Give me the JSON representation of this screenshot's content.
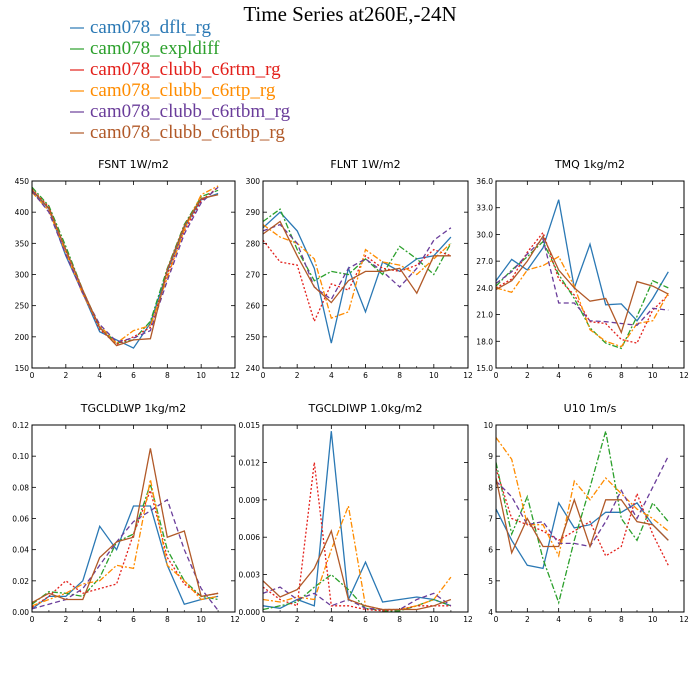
{
  "figure": {
    "title": "Time Series at260E,-24N"
  },
  "legend": [
    {
      "name": "cam078_dflt_rg",
      "color": "#2a78b4",
      "dash": "solid"
    },
    {
      "name": "cam078_expldiff",
      "color": "#2ca02c",
      "dash": "dashdot"
    },
    {
      "name": "cam078_clubb_c6rtm_rg",
      "color": "#e3201b",
      "dash": "dot"
    },
    {
      "name": "cam078_clubb_c6rtp_rg",
      "color": "#ff8c00",
      "dash": "dashdot"
    },
    {
      "name": "cam078_clubb_c6rtbm_rg",
      "color": "#6a3d9a",
      "dash": "dash"
    },
    {
      "name": "cam078_clubb_c6rtbp_rg",
      "color": "#b15928",
      "dash": "solid"
    }
  ],
  "chart_data": [
    {
      "type": "line",
      "title": "FSNT  1W/m2",
      "x": [
        0,
        1,
        2,
        3,
        4,
        5,
        6,
        7,
        8,
        9,
        10,
        11
      ],
      "xlim": [
        0,
        12
      ],
      "xticks": [
        "0",
        "2",
        "4",
        "6",
        "8",
        "10",
        "12"
      ],
      "ylim": [
        150,
        450
      ],
      "yticks": [
        "150",
        "200",
        "250",
        "300",
        "350",
        "400",
        "450"
      ],
      "series": [
        {
          "name": "cam078_dflt_rg",
          "values": [
            435,
            405,
            330,
            270,
            208,
            195,
            182,
            222,
            305,
            375,
            420,
            430
          ]
        },
        {
          "name": "cam078_expldiff",
          "values": [
            440,
            410,
            345,
            275,
            215,
            190,
            195,
            225,
            310,
            380,
            425,
            435
          ]
        },
        {
          "name": "cam078_clubb_c6rtm_rg",
          "values": [
            437,
            408,
            338,
            272,
            212,
            188,
            200,
            215,
            300,
            370,
            418,
            440
          ]
        },
        {
          "name": "cam078_clubb_c6rtp_rg",
          "values": [
            432,
            402,
            335,
            268,
            218,
            190,
            210,
            218,
            295,
            372,
            428,
            442
          ]
        },
        {
          "name": "cam078_clubb_c6rtbm_rg",
          "values": [
            434,
            400,
            332,
            270,
            220,
            192,
            198,
            210,
            290,
            365,
            415,
            440
          ]
        },
        {
          "name": "cam078_clubb_c6rtbp_rg",
          "values": [
            436,
            406,
            340,
            275,
            215,
            186,
            195,
            197,
            308,
            378,
            422,
            428
          ]
        }
      ]
    },
    {
      "type": "line",
      "title": "FLNT  1W/m2",
      "x": [
        0,
        1,
        2,
        3,
        4,
        5,
        6,
        7,
        8,
        9,
        10,
        11
      ],
      "xlim": [
        0,
        12
      ],
      "xticks": [
        "0",
        "2",
        "4",
        "6",
        "8",
        "10",
        "12"
      ],
      "ylim": [
        240,
        300
      ],
      "yticks": [
        "240",
        "250",
        "260",
        "270",
        "280",
        "290",
        "300"
      ],
      "series": [
        {
          "name": "cam078_dflt_rg",
          "values": [
            285,
            290,
            284,
            272,
            248,
            272,
            258,
            274,
            271,
            275,
            276,
            282
          ]
        },
        {
          "name": "cam078_expldiff",
          "values": [
            287,
            291,
            278,
            268,
            271,
            270,
            275,
            270,
            279,
            275,
            270,
            280
          ]
        },
        {
          "name": "cam078_clubb_c6rtm_rg",
          "values": [
            281,
            274,
            273,
            255,
            267,
            265,
            276,
            272,
            271,
            273,
            278,
            276
          ]
        },
        {
          "name": "cam078_clubb_c6rtp_rg",
          "values": [
            286,
            282,
            280,
            275,
            256,
            258,
            278,
            274,
            273,
            270,
            275,
            280
          ]
        },
        {
          "name": "cam078_clubb_c6rtbm_rg",
          "values": [
            284,
            286,
            280,
            266,
            262,
            272,
            275,
            271,
            266,
            272,
            281,
            285
          ]
        },
        {
          "name": "cam078_clubb_c6rtbp_rg",
          "values": [
            283,
            287,
            276,
            266,
            261,
            268,
            271,
            271,
            272,
            264,
            276,
            276
          ]
        }
      ]
    },
    {
      "type": "line",
      "title": "TMQ  1kg/m2",
      "x": [
        0,
        1,
        2,
        3,
        4,
        5,
        6,
        7,
        8,
        9,
        10,
        11
      ],
      "xlim": [
        0,
        12
      ],
      "xticks": [
        "0",
        "2",
        "4",
        "6",
        "8",
        "10",
        "12"
      ],
      "ylim": [
        15,
        36
      ],
      "yticks": [
        "15.0",
        "18.0",
        "21.0",
        "24.0",
        "27.0",
        "30.0",
        "33.0",
        "36.0"
      ],
      "series": [
        {
          "name": "cam078_dflt_rg",
          "values": [
            24.8,
            27.2,
            26.0,
            28.5,
            33.9,
            24.0,
            28.9,
            22.1,
            22.2,
            20.3,
            22.8,
            25.8
          ]
        },
        {
          "name": "cam078_expldiff",
          "values": [
            24.2,
            26.0,
            27.5,
            29.2,
            25.5,
            22.8,
            19.5,
            17.8,
            17.2,
            20.8,
            24.8,
            24.0
          ]
        },
        {
          "name": "cam078_clubb_c6rtm_rg",
          "values": [
            24.0,
            25.0,
            28.0,
            30.2,
            25.0,
            23.2,
            20.2,
            20.0,
            18.2,
            17.8,
            21.5,
            23.2
          ]
        },
        {
          "name": "cam078_clubb_c6rtp_rg",
          "values": [
            24.0,
            23.5,
            26.0,
            26.5,
            27.5,
            24.2,
            19.3,
            18.0,
            17.4,
            20.0,
            20.3,
            23.4
          ]
        },
        {
          "name": "cam078_clubb_c6rtbm_rg",
          "values": [
            24.5,
            25.8,
            27.8,
            29.5,
            22.3,
            22.3,
            20.3,
            20.2,
            20.0,
            19.8,
            21.7,
            21.5
          ]
        },
        {
          "name": "cam078_clubb_c6rtbp_rg",
          "values": [
            23.8,
            24.8,
            27.0,
            29.8,
            26.0,
            24.0,
            22.5,
            22.8,
            19.0,
            24.7,
            24.2,
            23.3
          ]
        }
      ]
    },
    {
      "type": "line",
      "title": "TGCLDLWP  1kg/m2",
      "x": [
        0,
        1,
        2,
        3,
        4,
        5,
        6,
        7,
        8,
        9,
        10,
        11
      ],
      "xlim": [
        0,
        12
      ],
      "xticks": [
        "0",
        "2",
        "4",
        "6",
        "8",
        "10",
        "12"
      ],
      "ylim": [
        0,
        0.12
      ],
      "yticks": [
        "0.00",
        "0.02",
        "0.04",
        "0.06",
        "0.08",
        "0.10",
        "0.12"
      ],
      "series": [
        {
          "name": "cam078_dflt_rg",
          "values": [
            0.002,
            0.01,
            0.01,
            0.02,
            0.055,
            0.04,
            0.068,
            0.068,
            0.03,
            0.005,
            0.008,
            0.01
          ]
        },
        {
          "name": "cam078_expldiff",
          "values": [
            0.005,
            0.013,
            0.012,
            0.01,
            0.022,
            0.045,
            0.05,
            0.082,
            0.04,
            0.02,
            0.01,
            0.008
          ]
        },
        {
          "name": "cam078_clubb_c6rtm_rg",
          "values": [
            0.003,
            0.01,
            0.02,
            0.012,
            0.015,
            0.018,
            0.05,
            0.078,
            0.035,
            0.018,
            0.01,
            0.012
          ]
        },
        {
          "name": "cam078_clubb_c6rtp_rg",
          "values": [
            0.004,
            0.008,
            0.012,
            0.018,
            0.02,
            0.03,
            0.028,
            0.085,
            0.03,
            0.02,
            0.008,
            0.01
          ]
        },
        {
          "name": "cam078_clubb_c6rtbm_rg",
          "values": [
            0.002,
            0.005,
            0.008,
            0.015,
            0.03,
            0.045,
            0.058,
            0.065,
            0.072,
            0.04,
            0.015,
            0.001
          ]
        },
        {
          "name": "cam078_clubb_c6rtbp_rg",
          "values": [
            0.006,
            0.012,
            0.008,
            0.008,
            0.035,
            0.045,
            0.048,
            0.105,
            0.048,
            0.052,
            0.01,
            0.012
          ]
        }
      ]
    },
    {
      "type": "line",
      "title": "TGCLDIWP  1.0kg/m2",
      "x": [
        0,
        1,
        2,
        3,
        4,
        5,
        6,
        7,
        8,
        9,
        10,
        11
      ],
      "xlim": [
        0,
        12
      ],
      "xticks": [
        "0",
        "2",
        "4",
        "6",
        "8",
        "10",
        "12"
      ],
      "ylim": [
        0,
        0.015
      ],
      "yticks": [
        "0.000",
        "0.003",
        "0.006",
        "0.009",
        "0.012",
        "0.015"
      ],
      "series": [
        {
          "name": "cam078_dflt_rg",
          "values": [
            0.0005,
            0.0003,
            0.001,
            0.0005,
            0.0145,
            0.001,
            0.004,
            0.0008,
            0.001,
            0.0012,
            0.001,
            0.0005
          ]
        },
        {
          "name": "cam078_expldiff",
          "values": [
            0.0002,
            0.0005,
            0.0008,
            0.002,
            0.003,
            0.0018,
            0.0003,
            0.0001,
            0.0001,
            0.0005,
            0.001,
            0.0005
          ]
        },
        {
          "name": "cam078_clubb_c6rtm_rg",
          "values": [
            0.002,
            0.001,
            0.0005,
            0.012,
            0.0005,
            0.0005,
            0.0002,
            0.0001,
            0.0002,
            0.0005,
            0.0005,
            0.0005
          ]
        },
        {
          "name": "cam078_clubb_c6rtp_rg",
          "values": [
            0.001,
            0.0008,
            0.0012,
            0.001,
            0.005,
            0.0085,
            0.0005,
            0.0002,
            0.0002,
            0.0005,
            0.001,
            0.0028
          ]
        },
        {
          "name": "cam078_clubb_c6rtbm_rg",
          "values": [
            0.0015,
            0.002,
            0.001,
            0.0015,
            0.0005,
            0.001,
            0.0003,
            0.0002,
            0.0002,
            0.001,
            0.0015,
            0.0005
          ]
        },
        {
          "name": "cam078_clubb_c6rtbp_rg",
          "values": [
            0.0025,
            0.0012,
            0.0018,
            0.0035,
            0.0065,
            0.001,
            0.0005,
            0.0002,
            0.0002,
            0.0002,
            0.0005,
            0.001
          ]
        }
      ]
    },
    {
      "type": "line",
      "title": "U10  1m/s",
      "x": [
        0,
        1,
        2,
        3,
        4,
        5,
        6,
        7,
        8,
        9,
        10,
        11
      ],
      "xlim": [
        0,
        12
      ],
      "xticks": [
        "0",
        "2",
        "4",
        "6",
        "8",
        "10",
        "12"
      ],
      "ylim": [
        4,
        10
      ],
      "yticks": [
        "4",
        "5",
        "6",
        "7",
        "8",
        "9",
        "10"
      ],
      "series": [
        {
          "name": "cam078_dflt_rg",
          "values": [
            7.3,
            6.3,
            5.5,
            5.4,
            7.5,
            6.7,
            6.8,
            7.2,
            7.2,
            7.5,
            6.8,
            6.3
          ]
        },
        {
          "name": "cam078_expldiff",
          "values": [
            8.8,
            6.5,
            7.7,
            5.7,
            4.3,
            6.3,
            8.0,
            9.8,
            7.0,
            6.3,
            7.5,
            6.9
          ]
        },
        {
          "name": "cam078_clubb_c6rtm_rg",
          "values": [
            8.6,
            7.0,
            6.8,
            6.6,
            6.3,
            6.6,
            6.9,
            5.8,
            6.1,
            7.8,
            6.5,
            5.5
          ]
        },
        {
          "name": "cam078_clubb_c6rtp_rg",
          "values": [
            9.6,
            8.9,
            6.8,
            6.8,
            5.8,
            8.2,
            7.6,
            8.3,
            7.8,
            7.3,
            7.0,
            6.6
          ]
        },
        {
          "name": "cam078_clubb_c6rtbm_rg",
          "values": [
            8.2,
            7.7,
            6.8,
            6.9,
            6.2,
            6.2,
            6.1,
            6.9,
            7.9,
            7.0,
            8.0,
            9.0
          ]
        },
        {
          "name": "cam078_clubb_c6rtbp_rg",
          "values": [
            8.3,
            5.9,
            7.0,
            6.1,
            6.1,
            7.6,
            6.1,
            7.6,
            7.6,
            6.9,
            6.8,
            6.3
          ]
        }
      ]
    }
  ]
}
